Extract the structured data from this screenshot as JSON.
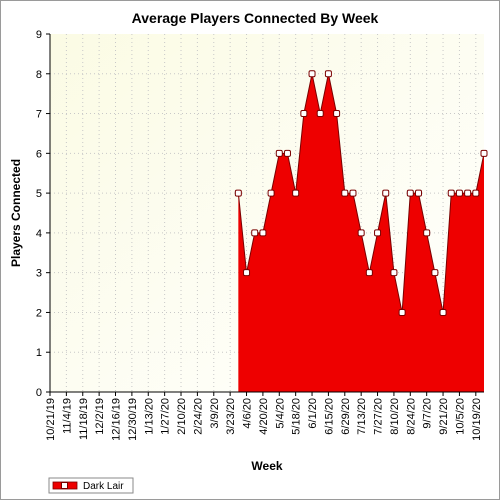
{
  "chart_data": {
    "type": "area",
    "title": "Average Players Connected By Week",
    "xlabel": "Week",
    "ylabel": "Players Connected",
    "ylim": [
      0,
      9
    ],
    "yticks": [
      "0",
      "1",
      "2",
      "3",
      "4",
      "5",
      "6",
      "7",
      "8",
      "9"
    ],
    "grid": true,
    "legend_position": "bottom-left",
    "x_tick_labels": [
      "10/21/19",
      "11/4/19",
      "11/18/19",
      "12/2/19",
      "12/16/19",
      "12/30/19",
      "1/13/20",
      "1/27/20",
      "2/10/20",
      "2/24/20",
      "3/9/20",
      "3/23/20",
      "4/6/20",
      "4/20/20",
      "5/4/20",
      "5/18/20",
      "6/1/20",
      "6/15/20",
      "6/29/20",
      "7/13/20",
      "7/27/20",
      "8/10/20",
      "8/24/20",
      "9/7/20",
      "9/21/20",
      "10/5/20",
      "10/19/20"
    ],
    "series": [
      {
        "name": "Dark Lair",
        "color": "#ee0000",
        "x": [
          "3/30/20",
          "4/6/20",
          "4/13/20",
          "4/20/20",
          "4/27/20",
          "5/4/20",
          "5/11/20",
          "5/18/20",
          "5/25/20",
          "6/1/20",
          "6/8/20",
          "6/15/20",
          "6/22/20",
          "6/29/20",
          "7/6/20",
          "7/13/20",
          "7/20/20",
          "7/27/20",
          "8/3/20",
          "8/10/20",
          "8/17/20",
          "8/24/20",
          "8/31/20",
          "9/7/20",
          "9/14/20",
          "9/21/20",
          "9/28/20",
          "10/5/20",
          "10/12/20",
          "10/19/20",
          "10/26/20"
        ],
        "values": [
          5,
          3,
          4,
          4,
          5,
          6,
          6,
          5,
          7,
          8,
          7,
          8,
          7,
          5,
          5,
          4,
          3,
          4,
          5,
          3,
          2,
          5,
          5,
          4,
          3,
          2,
          5,
          5,
          5,
          5,
          6
        ]
      }
    ]
  }
}
